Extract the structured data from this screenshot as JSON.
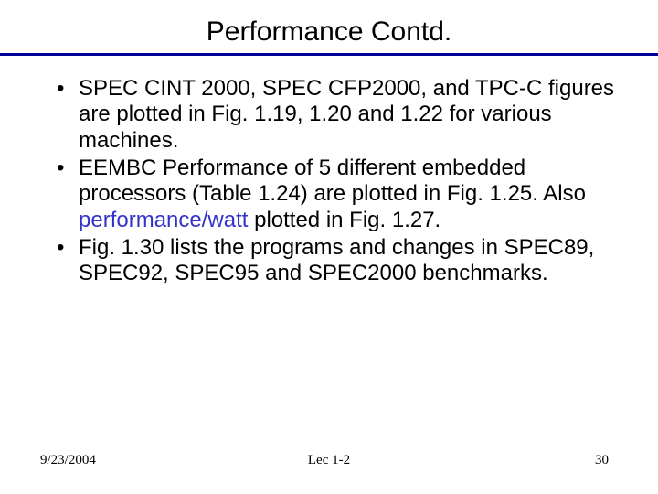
{
  "title": "Performance Contd.",
  "rule_color": "#000099",
  "highlight_color": "#3333cc",
  "bullets": [
    {
      "text": "SPEC CINT 2000, SPEC CFP2000, and TPC-C figures are plotted in Fig. 1.19, 1.20 and 1.22 for various machines."
    },
    {
      "prefix": "EEMBC Performance of 5 different embedded processors (Table 1.24) are plotted in Fig. 1.25. Also ",
      "highlight": "performance/watt",
      "suffix": " plotted in Fig. 1.27."
    },
    {
      "text": "Fig. 1.30 lists the programs and changes in SPEC89, SPEC92, SPEC95 and SPEC2000 benchmarks."
    }
  ],
  "footer": {
    "date": "9/23/2004",
    "center": "Lec 1-2",
    "page": "30"
  }
}
